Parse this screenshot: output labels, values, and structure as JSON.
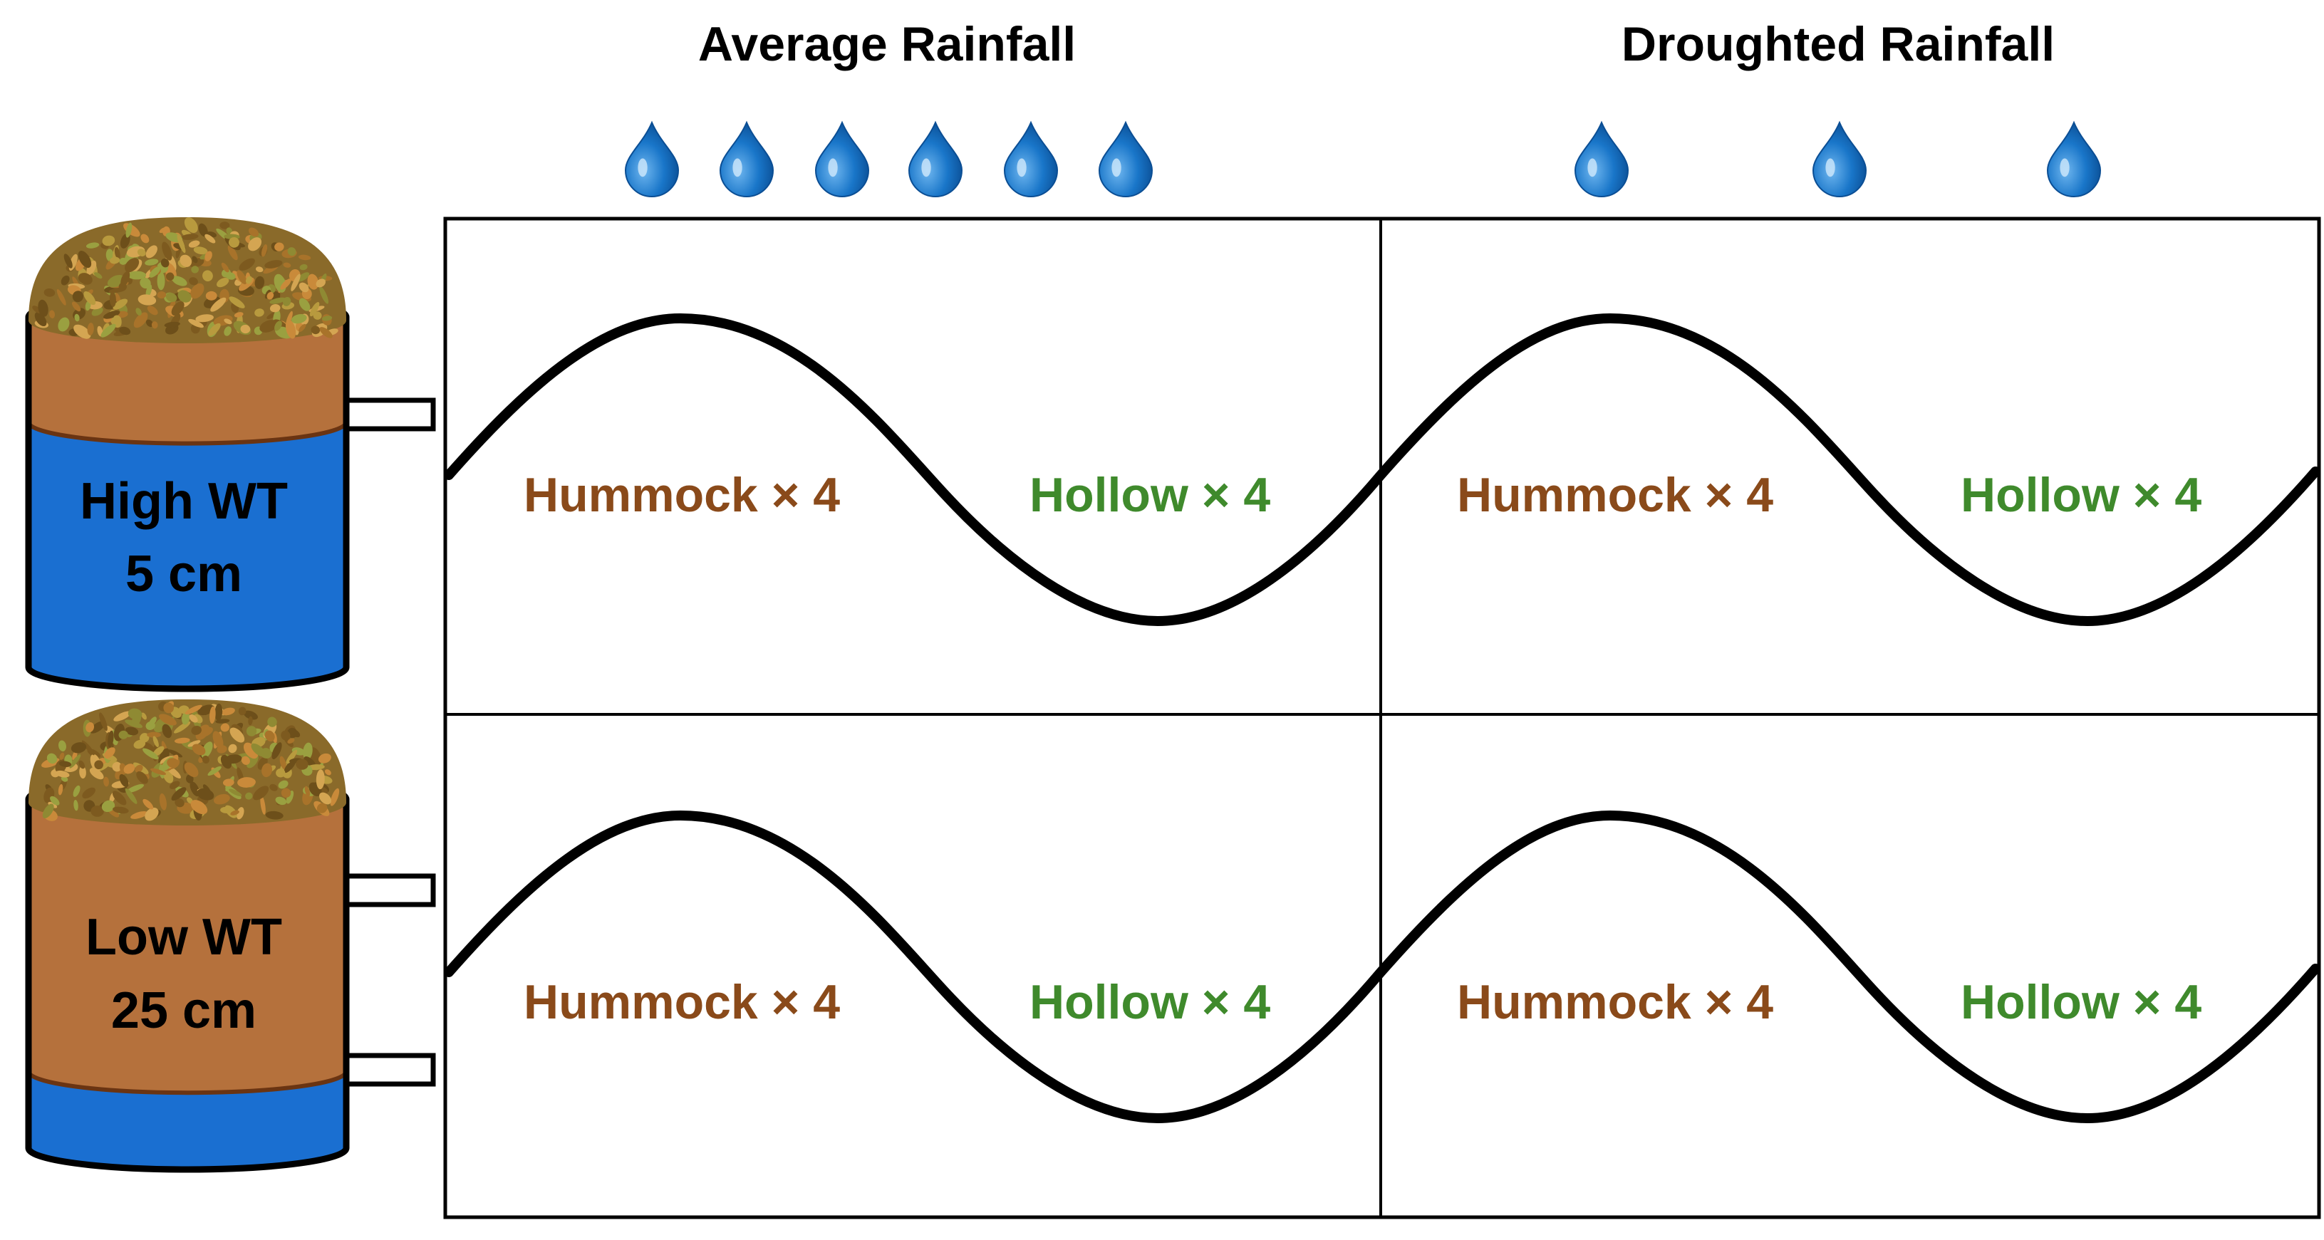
{
  "columns": [
    {
      "header": "Average Rainfall",
      "drops": 6
    },
    {
      "header": "Droughted Rainfall",
      "drops": 3
    }
  ],
  "rows": [
    {
      "line1": "High WT",
      "line2": "5 cm",
      "water_fraction": 0.7
    },
    {
      "line1": "Low WT",
      "line2": "25 cm",
      "water_fraction": 0.22
    }
  ],
  "cell_labels": {
    "hummock": "Hummock × 4",
    "hollow": "Hollow × 4"
  },
  "colors": {
    "hummock": "#8a4a1a",
    "hollow": "#3f8a2c",
    "water": "#1a6fd1",
    "soil": "#b5713c",
    "drop": "#1976c9",
    "grid": "#000000"
  }
}
